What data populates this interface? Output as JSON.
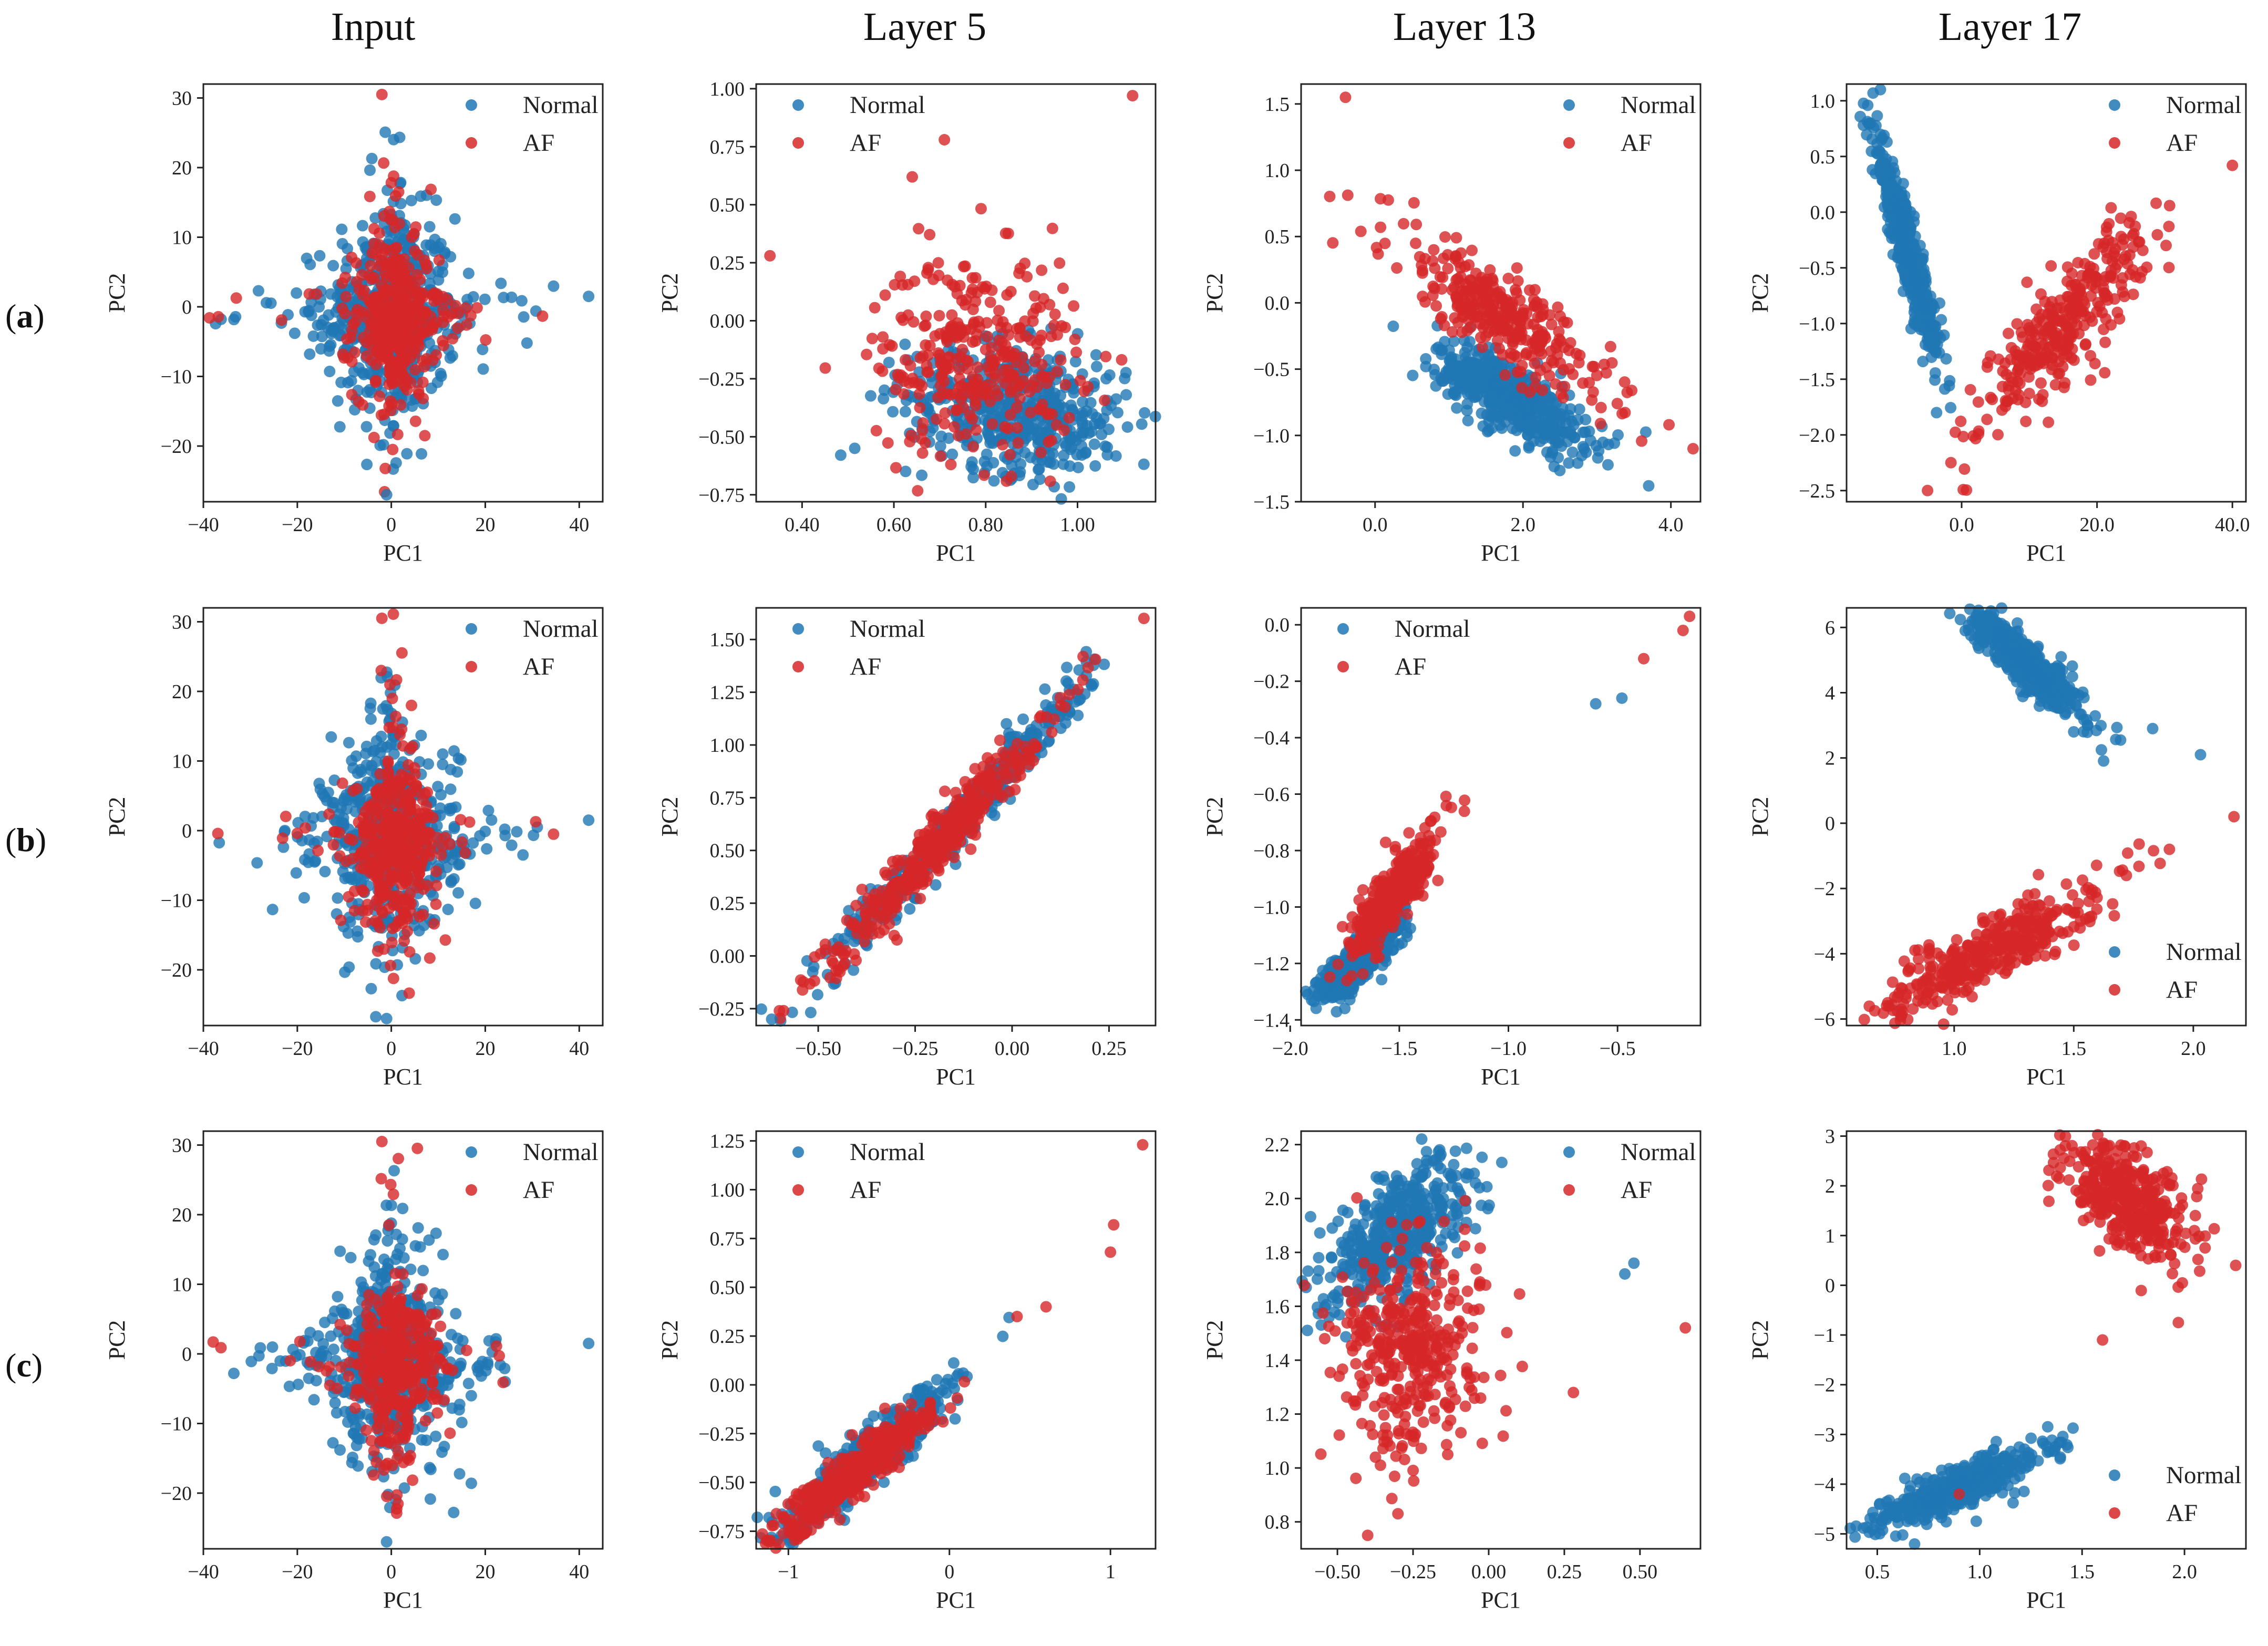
{
  "column_titles": [
    "Input",
    "Layer 5",
    "Layer 13",
    "Layer 17"
  ],
  "row_labels": [
    {
      "open": "(",
      "letter": "a",
      "close": ")"
    },
    {
      "open": "(",
      "letter": "b",
      "close": ")"
    },
    {
      "open": "(",
      "letter": "c",
      "close": ")"
    }
  ],
  "colors": {
    "Normal": "#1f77b4",
    "AF": "#d62728"
  },
  "chart_data": [
    {
      "id": "a-input",
      "row": 0,
      "col": 0,
      "type": "scatter",
      "xlabel": "PC1",
      "ylabel": "PC2",
      "xlim": [
        -40,
        45
      ],
      "ylim": [
        -28,
        32
      ],
      "xticks": [
        -40,
        -20,
        0,
        20,
        40
      ],
      "yticks": [
        -20,
        -10,
        0,
        10,
        20,
        30
      ],
      "legend": "upper right",
      "legend_entries": [
        "Normal",
        "AF"
      ],
      "clusters": [
        {
          "class": "Normal",
          "cx": 0,
          "cy": -1,
          "sx": 7,
          "sy": 7,
          "rho": 0,
          "n": 420
        },
        {
          "class": "Normal",
          "cx": 0,
          "cy": -1,
          "sx": 16,
          "sy": 2,
          "rho": 0,
          "n": 90
        },
        {
          "class": "Normal",
          "cx": 0,
          "cy": 0,
          "sx": 2.5,
          "sy": 12,
          "rho": 0,
          "n": 90
        },
        {
          "class": "AF",
          "cx": 1,
          "cy": -2,
          "sx": 4.5,
          "sy": 5.5,
          "rho": 0,
          "n": 300
        },
        {
          "class": "AF",
          "cx": 0,
          "cy": 0,
          "sx": 2,
          "sy": 12,
          "rho": 0,
          "n": 60
        },
        {
          "class": "AF",
          "cx": 0,
          "cy": -1,
          "sx": 14,
          "sy": 2,
          "rho": 0,
          "n": 40
        }
      ],
      "outliers": [
        {
          "class": "Normal",
          "x": 42,
          "y": 1.5
        },
        {
          "class": "AF",
          "x": -2,
          "y": 30.5
        },
        {
          "class": "Normal",
          "x": -1,
          "y": -27
        }
      ]
    },
    {
      "id": "a-l5",
      "row": 0,
      "col": 1,
      "type": "scatter",
      "xlabel": "PC1",
      "ylabel": "PC2",
      "xlim": [
        0.3,
        1.17
      ],
      "ylim": [
        -0.78,
        1.02
      ],
      "xticks": [
        0.4,
        0.6,
        0.8,
        1.0
      ],
      "yticks": [
        -0.75,
        -0.5,
        -0.25,
        0.0,
        0.25,
        0.5,
        0.75,
        1.0
      ],
      "tick_decimals": 2,
      "legend": "upper left",
      "legend_entries": [
        "Normal",
        "AF"
      ],
      "clusters": [
        {
          "class": "Normal",
          "cx": 0.87,
          "cy": -0.38,
          "sx": 0.12,
          "sy": 0.14,
          "rho": -0.2,
          "n": 520
        },
        {
          "class": "AF",
          "cx": 0.78,
          "cy": -0.15,
          "sx": 0.11,
          "sy": 0.22,
          "rho": 0,
          "n": 320
        }
      ],
      "outliers": [
        {
          "class": "AF",
          "x": 1.12,
          "y": 0.97
        },
        {
          "class": "AF",
          "x": 0.33,
          "y": 0.28
        },
        {
          "class": "AF",
          "x": 0.64,
          "y": 0.62
        },
        {
          "class": "AF",
          "x": 0.71,
          "y": 0.78
        }
      ]
    },
    {
      "id": "a-l13",
      "row": 0,
      "col": 2,
      "type": "scatter",
      "xlabel": "PC1",
      "ylabel": "PC2",
      "xlim": [
        -1,
        4.4
      ],
      "ylim": [
        -1.5,
        1.65
      ],
      "xticks": [
        0,
        2,
        4
      ],
      "yticks": [
        -1.5,
        -1.0,
        -0.5,
        0.0,
        0.5,
        1.0,
        1.5
      ],
      "tick_decimals": 1,
      "legend": "upper right",
      "legend_entries": [
        "Normal",
        "AF"
      ],
      "clusters": [
        {
          "class": "Normal",
          "cx": 1.85,
          "cy": -0.72,
          "sx": 0.5,
          "sy": 0.2,
          "rho": -0.75,
          "n": 520
        },
        {
          "class": "AF",
          "cx": 1.7,
          "cy": -0.1,
          "sx": 0.75,
          "sy": 0.33,
          "rho": -0.85,
          "n": 320
        }
      ],
      "outliers": [
        {
          "class": "AF",
          "x": -0.4,
          "y": 1.55
        },
        {
          "class": "AF",
          "x": 4.3,
          "y": -1.1
        },
        {
          "class": "Normal",
          "x": 3.7,
          "y": -1.38
        }
      ]
    },
    {
      "id": "a-l17",
      "row": 0,
      "col": 3,
      "type": "scatter",
      "xlabel": "PC1",
      "ylabel": "PC2",
      "xlim": [
        -17,
        42
      ],
      "ylim": [
        -2.6,
        1.15
      ],
      "xticks": [
        0,
        20,
        40
      ],
      "yticks": [
        -2.5,
        -2.0,
        -1.5,
        -1.0,
        -0.5,
        0.0,
        0.5,
        1.0
      ],
      "tick_decimals": 1,
      "legend": "upper right",
      "legend_entries": [
        "Normal",
        "AF"
      ],
      "clusters": [
        {
          "class": "Normal",
          "cx": -8,
          "cy": -0.35,
          "sx": 2.6,
          "sy": 0.55,
          "rho": -0.95,
          "n": 520
        },
        {
          "class": "AF",
          "cx": 15,
          "cy": -1.0,
          "sx": 6,
          "sy": 0.45,
          "rho": 0.85,
          "n": 320
        }
      ],
      "outliers": [
        {
          "class": "AF",
          "x": 40,
          "y": 0.42
        },
        {
          "class": "Normal",
          "x": -12,
          "y": 1.1
        }
      ]
    },
    {
      "id": "b-input",
      "row": 1,
      "col": 0,
      "type": "scatter",
      "xlabel": "PC1",
      "ylabel": "PC2",
      "xlim": [
        -40,
        45
      ],
      "ylim": [
        -28,
        32
      ],
      "xticks": [
        -40,
        -20,
        0,
        20,
        40
      ],
      "yticks": [
        -20,
        -10,
        0,
        10,
        20,
        30
      ],
      "legend": "upper right",
      "legend_entries": [
        "Normal",
        "AF"
      ],
      "clusters": [
        {
          "class": "Normal",
          "cx": 0,
          "cy": -1,
          "sx": 7,
          "sy": 7,
          "rho": 0,
          "n": 420
        },
        {
          "class": "Normal",
          "cx": 0,
          "cy": -1,
          "sx": 16,
          "sy": 2,
          "rho": 0,
          "n": 90
        },
        {
          "class": "Normal",
          "cx": 0,
          "cy": 0,
          "sx": 2.5,
          "sy": 12,
          "rho": 0,
          "n": 90
        },
        {
          "class": "AF",
          "cx": 1,
          "cy": -2,
          "sx": 4.5,
          "sy": 5.5,
          "rho": 0,
          "n": 300
        },
        {
          "class": "AF",
          "cx": 0,
          "cy": 0,
          "sx": 2,
          "sy": 12,
          "rho": 0,
          "n": 60
        },
        {
          "class": "AF",
          "cx": 0,
          "cy": -1,
          "sx": 14,
          "sy": 2,
          "rho": 0,
          "n": 40
        }
      ],
      "outliers": [
        {
          "class": "Normal",
          "x": 42,
          "y": 1.5
        },
        {
          "class": "AF",
          "x": -2,
          "y": 30.5
        },
        {
          "class": "Normal",
          "x": -1,
          "y": -27
        }
      ]
    },
    {
      "id": "b-l5",
      "row": 1,
      "col": 1,
      "type": "scatter",
      "xlabel": "PC1",
      "ylabel": "PC2",
      "xlim": [
        -0.66,
        0.37
      ],
      "ylim": [
        -0.33,
        1.65
      ],
      "xticks": [
        -0.5,
        -0.25,
        0.0,
        0.25
      ],
      "yticks": [
        -0.25,
        0.0,
        0.25,
        0.5,
        0.75,
        1.0,
        1.25,
        1.5
      ],
      "tick_decimals": 2,
      "legend": "upper left",
      "legend_entries": [
        "Normal",
        "AF"
      ],
      "clusters": [
        {
          "class": "Normal",
          "cx": -0.13,
          "cy": 0.65,
          "sx": 0.16,
          "sy": 0.33,
          "rho": 0.98,
          "n": 480
        },
        {
          "class": "AF",
          "cx": -0.2,
          "cy": 0.52,
          "sx": 0.14,
          "sy": 0.29,
          "rho": 0.97,
          "n": 380
        }
      ],
      "outliers": [
        {
          "class": "AF",
          "x": 0.34,
          "y": 1.6
        },
        {
          "class": "Normal",
          "x": -0.62,
          "y": -0.3
        },
        {
          "class": "AF",
          "x": -0.6,
          "y": -0.26
        }
      ]
    },
    {
      "id": "b-l13",
      "row": 1,
      "col": 2,
      "type": "scatter",
      "xlabel": "PC1",
      "ylabel": "PC2",
      "xlim": [
        -1.95,
        -0.12
      ],
      "ylim": [
        -1.42,
        0.06
      ],
      "xticks": [
        -2.0,
        -1.5,
        -1.0,
        -0.5
      ],
      "yticks": [
        -1.4,
        -1.2,
        -1.0,
        -0.8,
        -0.6,
        -0.4,
        -0.2,
        0.0
      ],
      "tick_decimals": 1,
      "legend": "upper left",
      "legend_entries": [
        "Normal",
        "AF"
      ],
      "clusters": [
        {
          "class": "Normal",
          "cx": -1.68,
          "cy": -1.18,
          "sx": 0.1,
          "sy": 0.08,
          "rho": 0.85,
          "n": 480
        },
        {
          "class": "AF",
          "cx": -1.52,
          "cy": -0.95,
          "sx": 0.1,
          "sy": 0.11,
          "rho": 0.85,
          "n": 380
        }
      ],
      "outliers": [
        {
          "class": "Normal",
          "x": -0.6,
          "y": -0.28
        },
        {
          "class": "Normal",
          "x": -0.48,
          "y": -0.26
        },
        {
          "class": "AF",
          "x": -0.38,
          "y": -0.12
        },
        {
          "class": "AF",
          "x": -0.2,
          "y": -0.02
        },
        {
          "class": "AF",
          "x": -0.17,
          "y": 0.03
        }
      ]
    },
    {
      "id": "b-l17",
      "row": 1,
      "col": 3,
      "type": "scatter",
      "xlabel": "PC1",
      "ylabel": "PC2",
      "xlim": [
        0.55,
        2.22
      ],
      "ylim": [
        -6.2,
        6.6
      ],
      "xticks": [
        1.0,
        1.5,
        2.0
      ],
      "yticks": [
        -6,
        -4,
        -2,
        0,
        2,
        4,
        6
      ],
      "tick_decimals": 1,
      "ytick_decimals": 0,
      "legend": "lower right",
      "legend_entries": [
        "Normal",
        "AF"
      ],
      "clusters": [
        {
          "class": "Normal",
          "cx": 1.3,
          "cy": 4.9,
          "sx": 0.12,
          "sy": 0.8,
          "rho": -0.88,
          "n": 480
        },
        {
          "class": "AF",
          "cx": 1.15,
          "cy": -3.9,
          "sx": 0.22,
          "sy": 0.95,
          "rho": 0.85,
          "n": 380
        }
      ],
      "outliers": [
        {
          "class": "Normal",
          "x": 2.03,
          "y": 2.1
        },
        {
          "class": "Normal",
          "x": 1.83,
          "y": 2.9
        },
        {
          "class": "AF",
          "x": 2.17,
          "y": 0.2
        },
        {
          "class": "AF",
          "x": 1.9,
          "y": -0.8
        },
        {
          "class": "AF",
          "x": 1.72,
          "y": -1.6
        }
      ]
    },
    {
      "id": "c-input",
      "row": 2,
      "col": 0,
      "type": "scatter",
      "xlabel": "PC1",
      "ylabel": "PC2",
      "xlim": [
        -40,
        45
      ],
      "ylim": [
        -28,
        32
      ],
      "xticks": [
        -40,
        -20,
        0,
        20,
        40
      ],
      "yticks": [
        -20,
        -10,
        0,
        10,
        20,
        30
      ],
      "legend": "upper right",
      "legend_entries": [
        "Normal",
        "AF"
      ],
      "clusters": [
        {
          "class": "Normal",
          "cx": 0,
          "cy": -1,
          "sx": 7,
          "sy": 7,
          "rho": 0,
          "n": 420
        },
        {
          "class": "Normal",
          "cx": 0,
          "cy": -1,
          "sx": 16,
          "sy": 2,
          "rho": 0,
          "n": 90
        },
        {
          "class": "Normal",
          "cx": 0,
          "cy": 0,
          "sx": 2.5,
          "sy": 12,
          "rho": 0,
          "n": 90
        },
        {
          "class": "AF",
          "cx": 1,
          "cy": -2,
          "sx": 4.5,
          "sy": 5.5,
          "rho": 0,
          "n": 300
        },
        {
          "class": "AF",
          "cx": 0,
          "cy": 0,
          "sx": 2,
          "sy": 12,
          "rho": 0,
          "n": 60
        },
        {
          "class": "AF",
          "cx": 0,
          "cy": -1,
          "sx": 14,
          "sy": 2,
          "rho": 0,
          "n": 40
        }
      ],
      "outliers": [
        {
          "class": "Normal",
          "x": 42,
          "y": 1.5
        },
        {
          "class": "AF",
          "x": -2,
          "y": 30.5
        },
        {
          "class": "Normal",
          "x": -1,
          "y": -27
        }
      ]
    },
    {
      "id": "c-l5",
      "row": 2,
      "col": 1,
      "type": "scatter",
      "xlabel": "PC1",
      "ylabel": "PC2",
      "xlim": [
        -1.2,
        1.28
      ],
      "ylim": [
        -0.84,
        1.3
      ],
      "xticks": [
        -1,
        0,
        1
      ],
      "yticks": [
        -0.75,
        -0.5,
        -0.25,
        0.0,
        0.25,
        0.5,
        0.75,
        1.0,
        1.25
      ],
      "tick_decimals": 0,
      "ytick_decimals": 2,
      "legend": "upper left",
      "legend_entries": [
        "Normal",
        "AF"
      ],
      "clusters": [
        {
          "class": "Normal",
          "cx": -0.5,
          "cy": -0.38,
          "sx": 0.27,
          "sy": 0.2,
          "rho": 0.93,
          "n": 480
        },
        {
          "class": "AF",
          "cx": -0.6,
          "cy": -0.45,
          "sx": 0.25,
          "sy": 0.17,
          "rho": 0.93,
          "n": 380
        }
      ],
      "outliers": [
        {
          "class": "AF",
          "x": 1.2,
          "y": 1.23
        },
        {
          "class": "AF",
          "x": 1.02,
          "y": 0.82
        },
        {
          "class": "AF",
          "x": 1.0,
          "y": 0.68
        },
        {
          "class": "AF",
          "x": 0.6,
          "y": 0.4
        },
        {
          "class": "AF",
          "x": 0.42,
          "y": 0.35
        }
      ]
    },
    {
      "id": "c-l13",
      "row": 2,
      "col": 2,
      "type": "scatter",
      "xlabel": "PC1",
      "ylabel": "PC2",
      "xlim": [
        -0.62,
        0.7
      ],
      "ylim": [
        0.7,
        2.25
      ],
      "xticks": [
        -0.5,
        -0.25,
        0.0,
        0.25,
        0.5
      ],
      "yticks": [
        0.8,
        1.0,
        1.2,
        1.4,
        1.6,
        1.8,
        2.0,
        2.2
      ],
      "tick_decimals": 2,
      "ytick_decimals": 1,
      "legend": "upper right",
      "legend_entries": [
        "Normal",
        "AF"
      ],
      "clusters": [
        {
          "class": "Normal",
          "cx": -0.3,
          "cy": 1.87,
          "sx": 0.12,
          "sy": 0.14,
          "rho": 0.6,
          "n": 480
        },
        {
          "class": "AF",
          "cx": -0.25,
          "cy": 1.45,
          "sx": 0.12,
          "sy": 0.2,
          "rho": 0.1,
          "n": 380
        }
      ],
      "outliers": [
        {
          "class": "AF",
          "x": 0.65,
          "y": 1.52
        },
        {
          "class": "AF",
          "x": -0.4,
          "y": 0.75
        },
        {
          "class": "AF",
          "x": 0.28,
          "y": 1.28
        },
        {
          "class": "Normal",
          "x": 0.48,
          "y": 1.76
        },
        {
          "class": "Normal",
          "x": 0.45,
          "y": 1.72
        }
      ]
    },
    {
      "id": "c-l17",
      "row": 2,
      "col": 3,
      "type": "scatter",
      "xlabel": "PC1",
      "ylabel": "PC2",
      "xlim": [
        0.35,
        2.3
      ],
      "ylim": [
        -5.3,
        3.1
      ],
      "xticks": [
        0.5,
        1.0,
        1.5,
        2.0
      ],
      "yticks": [
        -5,
        -4,
        -3,
        -2,
        -1,
        0,
        1,
        2,
        3
      ],
      "tick_decimals": 1,
      "ytick_decimals": 0,
      "legend": "lower right",
      "legend_entries": [
        "Normal",
        "AF"
      ],
      "clusters": [
        {
          "class": "Normal",
          "cx": 0.9,
          "cy": -4.05,
          "sx": 0.2,
          "sy": 0.4,
          "rho": 0.85,
          "n": 480
        },
        {
          "class": "AF",
          "cx": 1.72,
          "cy": 1.75,
          "sx": 0.15,
          "sy": 0.6,
          "rho": -0.55,
          "n": 380
        }
      ],
      "outliers": [
        {
          "class": "AF",
          "x": 2.25,
          "y": 0.4
        },
        {
          "class": "AF",
          "x": 1.97,
          "y": -0.75
        },
        {
          "class": "AF",
          "x": 1.6,
          "y": -1.1
        },
        {
          "class": "AF",
          "x": 0.9,
          "y": -4.2
        }
      ]
    }
  ]
}
